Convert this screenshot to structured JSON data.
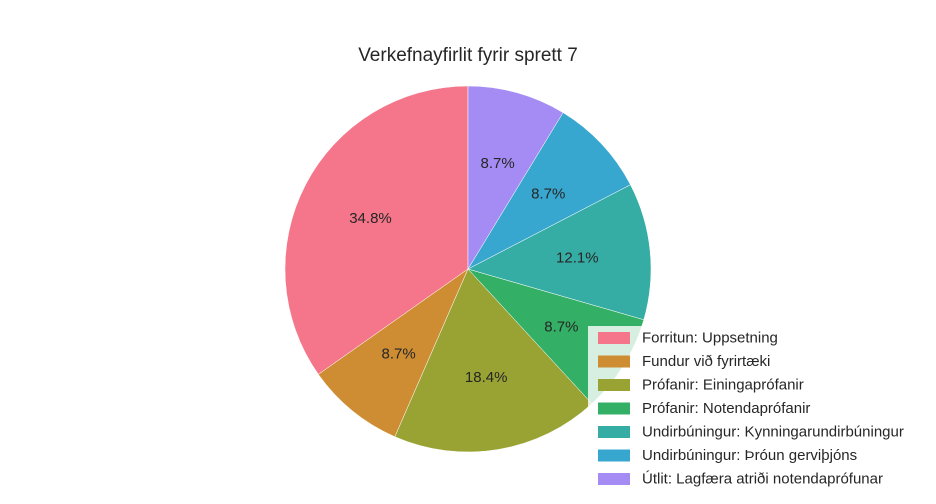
{
  "chart_data": {
    "type": "pie",
    "title": "Verkefnayfirlit fyrir sprett 7",
    "slices": [
      {
        "label": "Forritun: Uppsetning",
        "value": 34.8,
        "pct_label": "34.8%",
        "color": "#f5768a"
      },
      {
        "label": "Fundur við fyrirtæki",
        "value": 8.7,
        "pct_label": "8.7%",
        "color": "#ce8d32"
      },
      {
        "label": "Prófanir: Einingaprófanir",
        "value": 18.4,
        "pct_label": "18.4%",
        "color": "#99a334"
      },
      {
        "label": "Prófanir: Notendaprófanir",
        "value": 8.7,
        "pct_label": "8.7%",
        "color": "#33b065"
      },
      {
        "label": "Undirbúningur: Kynningarundirbúningur",
        "value": 12.1,
        "pct_label": "12.1%",
        "color": "#36ada4"
      },
      {
        "label": "Undirbúningur: Þróun gerviþjóns",
        "value": 8.7,
        "pct_label": "8.7%",
        "color": "#38a7d0"
      },
      {
        "label": "Útlit: Lagfæra atriði notendaprófunar",
        "value": 8.7,
        "pct_label": "8.7%",
        "color": "#a48cf4"
      }
    ],
    "start_angle": "top",
    "direction": "counterclockwise",
    "legend_position": "bottom-right"
  }
}
